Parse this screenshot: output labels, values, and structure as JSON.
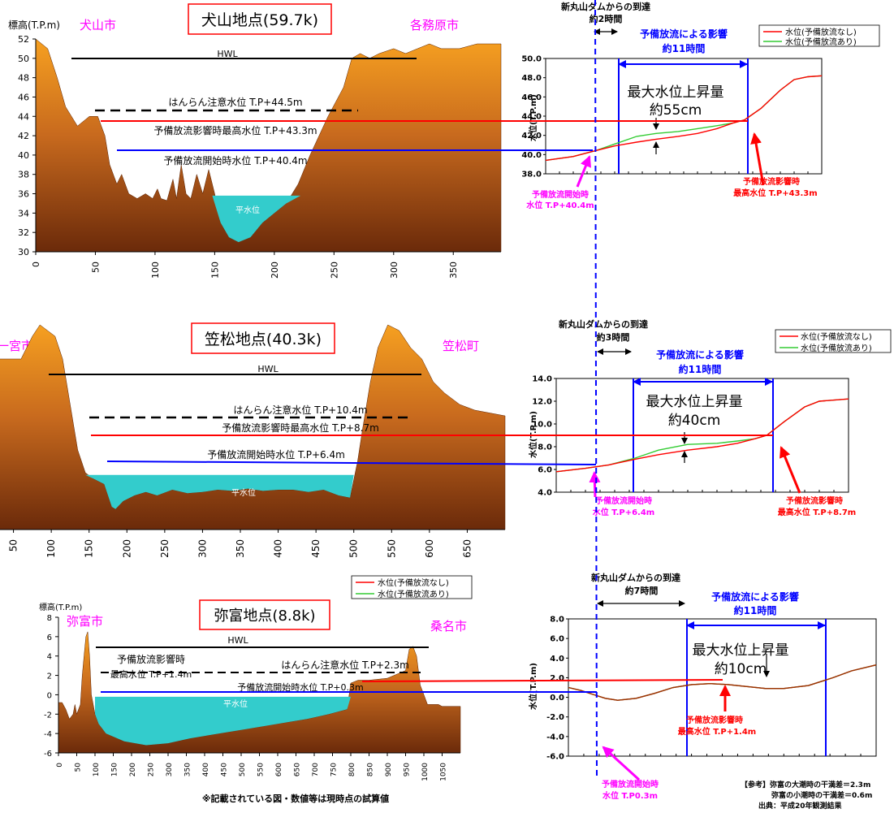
{
  "station_titles": [
    "犬山地点(59.7k)",
    "笠松地点(40.3k)",
    "弥富地点(8.8k)"
  ],
  "cities": {
    "inuyama": [
      "犬山市",
      "各務原市"
    ],
    "kasamatsu": [
      "一宮市",
      "笠松町"
    ],
    "yatomi": [
      "弥富市",
      "桑名市"
    ]
  },
  "labels": {
    "hwl": "HWL",
    "normal_water": "平水位",
    "elevation_axis": "標高(T.P.m)",
    "wl_axis": "水位(T.P.m)",
    "legend_none": "水位(予備放流なし)",
    "legend_with": "水位(予備放流あり)",
    "arrival": "新丸山ダムからの到達",
    "effect": "予備放流による影響",
    "effect_hours": "約11時間",
    "max_rise": "最大水位上昇量",
    "release_start_1": "予備放流開始時",
    "peak_1": "予備放流影響時",
    "footer_note": "※記載されている図・数値等は現時点の試算値",
    "reference_1": "【参考】弥富の大潮時の干満差＝2.3m",
    "reference_2": "弥富の小潮時の干満差＝0.6m",
    "reference_3": "出典：平成20年観測結果"
  },
  "levels": {
    "inuyama": {
      "caution": "はんらん注意水位 T.P+44.5m",
      "peak": "予備放流影響時最高水位 T.P+43.3m",
      "start": "予備放流開始時水位 T.P+40.4m"
    },
    "kasamatsu": {
      "caution": "はんらん注意水位 T.P+10.4m",
      "peak": "予備放流影響時最高水位 T.P+8.7m",
      "start": "予備放流開始時水位 T.P+6.4m"
    },
    "yatomi": {
      "caution": "はんらん注意水位 T.P+2.3m",
      "peak_1": "予備放流影響時",
      "peak_2": "最高水位 T.P+1.4m",
      "start": "予備放流開始時水位 T.P+0.3m"
    }
  },
  "callouts": {
    "inuyama": {
      "arrival_time": "約2時間",
      "rise": "約55cm",
      "start_value": "水位 T.P+40.4m",
      "peak_value": "最高水位 T.P+43.3m"
    },
    "kasamatsu": {
      "arrival_time": "約3時間",
      "rise": "約40cm",
      "start_value": "水位 T.P+6.4m",
      "peak_value": "最高水位 T.P+8.7m"
    },
    "yatomi": {
      "arrival_time": "約7時間",
      "rise": "約10cm",
      "start_value": "水位 T.P0.3m",
      "peak_value": "最高水位 T.P+1.4m"
    }
  },
  "colors": {
    "ground": "#b0581d",
    "ground_light": "#f09a1a",
    "water": "#33cccc",
    "red": "#ff0000",
    "green": "#33cc33",
    "blue": "#0000ff",
    "magenta": "#ff00ff",
    "brown": "#993300"
  },
  "chart_data": [
    {
      "type": "area",
      "name": "inuyama-cross-section",
      "xlim": [
        0,
        390
      ],
      "ylim": [
        30,
        52
      ],
      "x_ticks": [
        0,
        50,
        100,
        150,
        200,
        250,
        300,
        350
      ],
      "y_ticks": [
        30,
        32,
        34,
        36,
        38,
        40,
        42,
        44,
        46,
        48,
        50,
        52
      ],
      "hwl": 50,
      "caution": 44.5,
      "peak": 43.3,
      "start": 40.4,
      "normal": 35.8,
      "profile": [
        [
          0,
          52
        ],
        [
          10,
          51
        ],
        [
          18,
          48
        ],
        [
          25,
          45
        ],
        [
          35,
          43
        ],
        [
          45,
          44
        ],
        [
          52,
          44
        ],
        [
          58,
          42
        ],
        [
          62,
          39
        ],
        [
          68,
          37
        ],
        [
          72,
          38
        ],
        [
          78,
          36
        ],
        [
          85,
          35.5
        ],
        [
          92,
          36
        ],
        [
          98,
          35.5
        ],
        [
          102,
          36.5
        ],
        [
          105,
          35.5
        ],
        [
          110,
          35.3
        ],
        [
          115,
          37.5
        ],
        [
          118,
          35.5
        ],
        [
          122,
          39
        ],
        [
          126,
          36
        ],
        [
          130,
          35.5
        ],
        [
          135,
          38
        ],
        [
          140,
          36
        ],
        [
          145,
          38.5
        ],
        [
          150,
          36
        ],
        [
          155,
          33
        ],
        [
          162,
          31.5
        ],
        [
          170,
          31
        ],
        [
          180,
          31.5
        ],
        [
          190,
          33
        ],
        [
          200,
          34
        ],
        [
          210,
          35
        ],
        [
          220,
          37
        ],
        [
          230,
          40
        ],
        [
          245,
          44
        ],
        [
          258,
          47
        ],
        [
          265,
          50
        ],
        [
          272,
          50.5
        ],
        [
          280,
          50
        ],
        [
          288,
          50.5
        ],
        [
          300,
          51
        ],
        [
          310,
          50.5
        ],
        [
          320,
          51
        ],
        [
          330,
          51.5
        ],
        [
          340,
          51
        ],
        [
          355,
          51
        ],
        [
          370,
          51.5
        ],
        [
          390,
          51.5
        ]
      ],
      "normal_water_x": [
        148,
        222
      ]
    },
    {
      "type": "line",
      "name": "inuyama-water-level",
      "ylim": [
        38,
        50
      ],
      "y_ticks": [
        38.0,
        40.0,
        42.0,
        44.0,
        46.0,
        48.0,
        50.0
      ],
      "series": [
        {
          "name": "水位(予備放流なし)",
          "points": [
            [
              0,
              39.4
            ],
            [
              10,
              39.8
            ],
            [
              18,
              40.4
            ],
            [
              25,
              40.9
            ],
            [
              33,
              41.3
            ],
            [
              40,
              41.6
            ],
            [
              48,
              41.9
            ],
            [
              55,
              42.2
            ],
            [
              62,
              42.7
            ],
            [
              68,
              43.3
            ],
            [
              72,
              43.6
            ],
            [
              78,
              44.8
            ],
            [
              85,
              46.7
            ],
            [
              90,
              47.8
            ],
            [
              95,
              48.1
            ],
            [
              100,
              48.2
            ]
          ]
        },
        {
          "name": "水位(予備放流あり)",
          "points": [
            [
              0,
              39.4
            ],
            [
              10,
              39.8
            ],
            [
              18,
              40.4
            ],
            [
              25,
              41.1
            ],
            [
              33,
              41.9
            ],
            [
              40,
              42.2
            ],
            [
              48,
              42.4
            ],
            [
              55,
              42.7
            ],
            [
              62,
              43.0
            ],
            [
              68,
              43.3
            ],
            [
              72,
              43.6
            ],
            [
              78,
              44.8
            ],
            [
              85,
              46.7
            ],
            [
              90,
              47.8
            ],
            [
              95,
              48.1
            ],
            [
              100,
              48.2
            ]
          ]
        }
      ]
    },
    {
      "type": "area",
      "name": "kasamatsu-cross-section",
      "xlim": [
        0,
        700
      ],
      "ylim": [
        -1,
        17
      ],
      "x_ticks": [
        50,
        100,
        150,
        200,
        250,
        300,
        350,
        400,
        450,
        500,
        550,
        600,
        650
      ],
      "hwl": 12,
      "caution": 10.4,
      "peak": 8.7,
      "start": 6.4,
      "normal": 3.8,
      "profile": [
        [
          0,
          13
        ],
        [
          20,
          14
        ],
        [
          60,
          14
        ],
        [
          75,
          16
        ],
        [
          85,
          17
        ],
        [
          95,
          16.5
        ],
        [
          105,
          16
        ],
        [
          115,
          14
        ],
        [
          125,
          10
        ],
        [
          135,
          6
        ],
        [
          145,
          4
        ],
        [
          155,
          3.5
        ],
        [
          170,
          3
        ],
        [
          180,
          1
        ],
        [
          185,
          0.8
        ],
        [
          195,
          1.5
        ],
        [
          210,
          2
        ],
        [
          225,
          2.3
        ],
        [
          240,
          2.0
        ],
        [
          260,
          2.5
        ],
        [
          280,
          2.2
        ],
        [
          300,
          2.3
        ],
        [
          320,
          2.5
        ],
        [
          340,
          2.4
        ],
        [
          360,
          2.6
        ],
        [
          380,
          2.4
        ],
        [
          400,
          2.5
        ],
        [
          420,
          2.5
        ],
        [
          440,
          2.3
        ],
        [
          460,
          2.5
        ],
        [
          480,
          2.0
        ],
        [
          495,
          1.8
        ],
        [
          505,
          5
        ],
        [
          512,
          8
        ],
        [
          522,
          12
        ],
        [
          532,
          15
        ],
        [
          545,
          17
        ],
        [
          560,
          16.5
        ],
        [
          575,
          15
        ],
        [
          590,
          14
        ],
        [
          605,
          12
        ],
        [
          620,
          11
        ],
        [
          640,
          10
        ],
        [
          660,
          9.5
        ],
        [
          700,
          9
        ]
      ],
      "normal_water_x": [
        145,
        500
      ]
    },
    {
      "type": "line",
      "name": "kasamatsu-water-level",
      "ylim": [
        4,
        14
      ],
      "y_ticks": [
        4.0,
        6.0,
        8.0,
        10.0,
        12.0,
        14.0
      ],
      "series": [
        {
          "name": "水位(予備放流なし)",
          "points": [
            [
              0,
              5.8
            ],
            [
              10,
              6.1
            ],
            [
              18,
              6.4
            ],
            [
              27,
              6.9
            ],
            [
              35,
              7.3
            ],
            [
              45,
              7.7
            ],
            [
              55,
              8.0
            ],
            [
              62,
              8.3
            ],
            [
              68,
              8.7
            ],
            [
              72,
              9.0
            ],
            [
              78,
              10.2
            ],
            [
              85,
              11.5
            ],
            [
              90,
              12.0
            ],
            [
              100,
              12.2
            ]
          ]
        },
        {
          "name": "水位(予備放流あり)",
          "points": [
            [
              0,
              5.8
            ],
            [
              10,
              6.1
            ],
            [
              18,
              6.4
            ],
            [
              27,
              7.0
            ],
            [
              35,
              7.7
            ],
            [
              45,
              8.2
            ],
            [
              55,
              8.3
            ],
            [
              62,
              8.5
            ],
            [
              68,
              8.7
            ],
            [
              72,
              9.0
            ],
            [
              78,
              10.2
            ],
            [
              85,
              11.5
            ],
            [
              90,
              12.0
            ],
            [
              100,
              12.2
            ]
          ]
        }
      ]
    },
    {
      "type": "area",
      "name": "yatomi-cross-section",
      "xlim": [
        0,
        1100
      ],
      "ylim": [
        -6,
        8
      ],
      "x_ticks": [
        0,
        50,
        100,
        150,
        200,
        250,
        300,
        350,
        400,
        450,
        500,
        550,
        600,
        650,
        700,
        750,
        800,
        850,
        900,
        950,
        1000,
        1050
      ],
      "y_ticks": [
        -6,
        -4,
        -2,
        0,
        2,
        4,
        6,
        8
      ],
      "hwl": 4.8,
      "caution": 2.3,
      "peak": 1.4,
      "start": 0.3,
      "normal": -0.2,
      "profile": [
        [
          0,
          -0.8
        ],
        [
          10,
          -0.8
        ],
        [
          20,
          -1.5
        ],
        [
          30,
          -2.5
        ],
        [
          40,
          -2
        ],
        [
          45,
          -1
        ],
        [
          50,
          -2
        ],
        [
          60,
          -1
        ],
        [
          65,
          2
        ],
        [
          70,
          4
        ],
        [
          75,
          6
        ],
        [
          80,
          6.5
        ],
        [
          85,
          4
        ],
        [
          90,
          0
        ],
        [
          95,
          -1
        ],
        [
          100,
          -2
        ],
        [
          110,
          -3
        ],
        [
          130,
          -4
        ],
        [
          180,
          -4.8
        ],
        [
          240,
          -5.2
        ],
        [
          300,
          -5
        ],
        [
          360,
          -4.5
        ],
        [
          440,
          -4
        ],
        [
          520,
          -3.5
        ],
        [
          600,
          -3
        ],
        [
          680,
          -2.5
        ],
        [
          740,
          -2
        ],
        [
          790,
          -1.5
        ],
        [
          800,
          1.2
        ],
        [
          820,
          1.5
        ],
        [
          850,
          1.5
        ],
        [
          900,
          1.7
        ],
        [
          950,
          2.5
        ],
        [
          960,
          4.7
        ],
        [
          970,
          5
        ],
        [
          980,
          4
        ],
        [
          990,
          1
        ],
        [
          1000,
          0
        ],
        [
          1010,
          -1
        ],
        [
          1040,
          -1
        ],
        [
          1050,
          -1.2
        ],
        [
          1100,
          -1.2
        ]
      ],
      "normal_water_x": [
        100,
        800
      ]
    },
    {
      "type": "line",
      "name": "yatomi-water-level",
      "ylim": [
        -6,
        8
      ],
      "y_ticks": [
        -6.0,
        -4.0,
        -2.0,
        0.0,
        2.0,
        4.0,
        6.0,
        8.0
      ],
      "series": [
        {
          "name": "水位(予備放流なし)",
          "points": [
            [
              0,
              1.0
            ],
            [
              4,
              0.7
            ],
            [
              8,
              0.3
            ],
            [
              12,
              -0.1
            ],
            [
              16,
              -0.3
            ],
            [
              22,
              -0.1
            ],
            [
              28,
              0.4
            ],
            [
              34,
              1.0
            ],
            [
              40,
              1.3
            ],
            [
              46,
              1.4
            ],
            [
              52,
              1.3
            ],
            [
              58,
              1.1
            ],
            [
              64,
              0.9
            ],
            [
              70,
              0.9
            ],
            [
              78,
              1.2
            ],
            [
              86,
              2.0
            ],
            [
              92,
              2.7
            ],
            [
              100,
              3.3
            ]
          ]
        },
        {
          "name": "水位(予備放流あり)",
          "points": [
            [
              0,
              1.0
            ],
            [
              4,
              0.7
            ],
            [
              8,
              0.3
            ],
            [
              12,
              -0.1
            ],
            [
              16,
              -0.3
            ],
            [
              22,
              -0.1
            ],
            [
              28,
              0.4
            ],
            [
              34,
              1.0
            ],
            [
              40,
              1.3
            ],
            [
              46,
              1.4
            ],
            [
              52,
              1.3
            ],
            [
              58,
              1.1
            ],
            [
              64,
              0.9
            ],
            [
              70,
              0.9
            ],
            [
              78,
              1.2
            ],
            [
              86,
              2.0
            ],
            [
              92,
              2.7
            ],
            [
              100,
              3.3
            ]
          ]
        }
      ]
    }
  ]
}
